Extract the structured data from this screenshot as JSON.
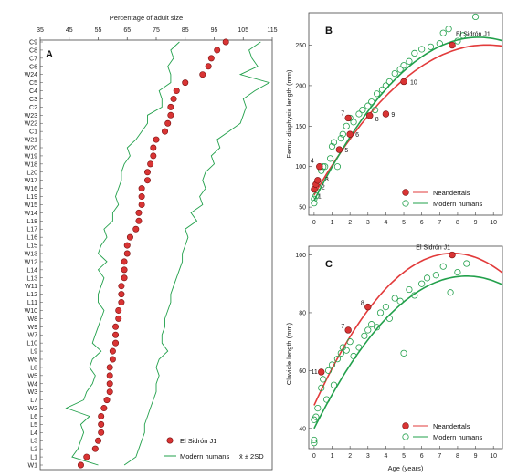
{
  "colors": {
    "neandertal": "#e23b3b",
    "neandertal_fill": "#d93434",
    "human": "#22a04b"
  },
  "chart_data": [
    {
      "type": "scatter",
      "panel": "A",
      "xlabel": "Percentage of adult size",
      "xlim": [
        35,
        115
      ],
      "xticks": [
        35,
        45,
        55,
        65,
        75,
        85,
        95,
        105,
        115
      ],
      "categories": [
        "C9",
        "C8",
        "C7",
        "C6",
        "W24",
        "C5",
        "C4",
        "C3",
        "C2",
        "W23",
        "W22",
        "C1",
        "W21",
        "W20",
        "W19",
        "W18",
        "L20",
        "W17",
        "W16",
        "L19",
        "W15",
        "W14",
        "L18",
        "L17",
        "L16",
        "L15",
        "W13",
        "W12",
        "L14",
        "L13",
        "W11",
        "L12",
        "L11",
        "W10",
        "W8",
        "W9",
        "W7",
        "L10",
        "L9",
        "W6",
        "L8",
        "W5",
        "W4",
        "W3",
        "L7",
        "W2",
        "L6",
        "L5",
        "L4",
        "L3",
        "L2",
        "L1",
        "W1"
      ],
      "series": [
        {
          "name": "El Sidrón J1",
          "values": [
            99,
            96,
            94,
            93,
            91,
            85,
            82,
            81,
            80,
            80,
            79,
            78,
            75,
            74,
            74,
            73,
            72,
            72,
            70,
            70,
            70,
            69,
            69,
            68,
            66,
            65,
            65,
            64,
            64,
            64,
            63,
            63,
            63,
            62,
            62,
            61,
            61,
            61,
            60,
            60,
            59,
            59,
            59,
            59,
            58,
            57,
            56,
            56,
            56,
            55,
            54,
            51,
            49
          ]
        },
        {
          "name": "Modern humans",
          "values_low": [
            83,
            80,
            81,
            79,
            80,
            80,
            76,
            77,
            77,
            72,
            72,
            70,
            68,
            65,
            66,
            64,
            63,
            63,
            62,
            61,
            62,
            60,
            60,
            57,
            58,
            56,
            55,
            58,
            55,
            57,
            56,
            55,
            55,
            57,
            56,
            55,
            54,
            53,
            56,
            53,
            52,
            54,
            53,
            51,
            50,
            44,
            52,
            49,
            50,
            49,
            48,
            46,
            55
          ],
          "values_high": [
            111,
            107,
            108,
            110,
            104,
            114,
            109,
            105,
            106,
            105,
            104,
            100,
            96,
            97,
            94,
            95,
            92,
            91,
            92,
            90,
            91,
            87,
            89,
            85,
            86,
            85,
            84,
            84,
            83,
            82,
            81,
            80,
            80,
            79,
            78,
            78,
            77,
            77,
            79,
            76,
            75,
            76,
            75,
            75,
            74,
            73,
            72,
            71,
            71,
            70,
            69,
            68,
            64
          ]
        }
      ],
      "legend": [
        "El Sidrón J1",
        "Modern humans",
        "x̄ ± 2SD"
      ]
    },
    {
      "type": "scatter",
      "panel": "B",
      "xlabel": "",
      "ylabel": "Femur diaphysis length (mm)",
      "xlim": [
        -0.3,
        10.5
      ],
      "ylim": [
        40,
        290
      ],
      "xticks": [
        0,
        1,
        2,
        3,
        4,
        5,
        6,
        7,
        8,
        9,
        10
      ],
      "yticks": [
        50,
        100,
        150,
        200,
        250
      ],
      "neandertal_points": [
        {
          "x": 0.0,
          "y": 72,
          "label": "1"
        },
        {
          "x": 0.1,
          "y": 78,
          "label": "2"
        },
        {
          "x": 0.2,
          "y": 83,
          "label": "3"
        },
        {
          "x": 0.3,
          "y": 100,
          "label": "4"
        },
        {
          "x": 1.4,
          "y": 121,
          "label": "5"
        },
        {
          "x": 2.0,
          "y": 140,
          "label": "6"
        },
        {
          "x": 1.9,
          "y": 160,
          "label": "7"
        },
        {
          "x": 3.1,
          "y": 163,
          "label": "8"
        },
        {
          "x": 4.0,
          "y": 165,
          "label": "9"
        },
        {
          "x": 5.0,
          "y": 205,
          "label": "10"
        },
        {
          "x": 7.7,
          "y": 250,
          "label": "El Sidrón J1"
        }
      ],
      "human_points": [
        [
          0.0,
          55
        ],
        [
          0.0,
          60
        ],
        [
          0.1,
          64
        ],
        [
          0.2,
          75
        ],
        [
          0.4,
          95
        ],
        [
          0.5,
          100
        ],
        [
          0.6,
          100
        ],
        [
          0.9,
          110
        ],
        [
          1.0,
          125
        ],
        [
          1.1,
          130
        ],
        [
          1.3,
          100
        ],
        [
          1.5,
          135
        ],
        [
          1.6,
          140
        ],
        [
          1.8,
          150
        ],
        [
          2.0,
          160
        ],
        [
          2.2,
          155
        ],
        [
          2.5,
          165
        ],
        [
          2.7,
          170
        ],
        [
          3.0,
          175
        ],
        [
          3.2,
          180
        ],
        [
          3.4,
          170
        ],
        [
          3.5,
          190
        ],
        [
          3.8,
          195
        ],
        [
          4.0,
          200
        ],
        [
          4.2,
          205
        ],
        [
          4.5,
          215
        ],
        [
          4.8,
          220
        ],
        [
          5.0,
          225
        ],
        [
          5.3,
          230
        ],
        [
          5.6,
          240
        ],
        [
          6.0,
          245
        ],
        [
          6.5,
          248
        ],
        [
          7.0,
          252
        ],
        [
          7.2,
          265
        ],
        [
          7.5,
          270
        ],
        [
          8.0,
          255
        ],
        [
          8.3,
          262
        ],
        [
          9.0,
          285
        ]
      ],
      "legend": [
        "Neandertals",
        "Modern humans"
      ]
    },
    {
      "type": "scatter",
      "panel": "C",
      "xlabel": "Age (years)",
      "ylabel": "Clavicle length (mm)",
      "xlim": [
        -0.3,
        10.5
      ],
      "ylim": [
        33,
        103
      ],
      "xticks": [
        0,
        1,
        2,
        3,
        4,
        5,
        6,
        7,
        8,
        9,
        10
      ],
      "yticks": [
        40,
        60,
        80,
        100
      ],
      "neandertal_points": [
        {
          "x": 0.4,
          "y": 59.5,
          "label": "11"
        },
        {
          "x": 1.9,
          "y": 74,
          "label": "7"
        },
        {
          "x": 3.0,
          "y": 82,
          "label": "8"
        },
        {
          "x": 7.7,
          "y": 100,
          "label": "El Sidrón J1"
        }
      ],
      "human_points": [
        [
          0.0,
          35
        ],
        [
          0.0,
          36
        ],
        [
          0.0,
          43
        ],
        [
          0.1,
          44
        ],
        [
          0.2,
          47
        ],
        [
          0.4,
          54
        ],
        [
          0.5,
          57
        ],
        [
          0.7,
          50
        ],
        [
          0.8,
          60
        ],
        [
          1.0,
          62
        ],
        [
          1.1,
          55
        ],
        [
          1.3,
          64
        ],
        [
          1.5,
          66
        ],
        [
          1.6,
          68
        ],
        [
          1.8,
          67
        ],
        [
          2.0,
          70
        ],
        [
          2.2,
          65
        ],
        [
          2.5,
          68
        ],
        [
          2.8,
          72
        ],
        [
          3.0,
          74
        ],
        [
          3.2,
          76
        ],
        [
          3.5,
          75
        ],
        [
          3.7,
          80
        ],
        [
          4.0,
          82
        ],
        [
          4.2,
          78
        ],
        [
          4.5,
          85
        ],
        [
          4.8,
          84
        ],
        [
          5.0,
          66
        ],
        [
          5.3,
          88
        ],
        [
          5.6,
          86
        ],
        [
          6.0,
          90
        ],
        [
          6.3,
          92
        ],
        [
          6.8,
          93
        ],
        [
          7.2,
          96
        ],
        [
          7.6,
          87
        ],
        [
          8.0,
          94
        ],
        [
          8.5,
          97
        ]
      ],
      "legend": [
        "Neandertals",
        "Modern humans"
      ]
    }
  ],
  "text": {
    "panelA": {
      "label": "A",
      "xlabel": "Percentage of adult size",
      "legend_neandertal": "El Sidrón J1",
      "legend_human": "Modern humans",
      "legend_sd": "x̄ ± 2SD"
    },
    "panelB": {
      "label": "B",
      "ylabel": "Femur diaphysis length (mm)",
      "sidron": "El Sidrón J1",
      "legend_neandertal": "Neandertals",
      "legend_human": "Modern humans"
    },
    "panelC": {
      "label": "C",
      "ylabel": "Clavicle length (mm)",
      "xlabel": "Age (years)",
      "sidron": "El Sidrón J1",
      "legend_neandertal": "Neandertals",
      "legend_human": "Modern humans"
    }
  }
}
